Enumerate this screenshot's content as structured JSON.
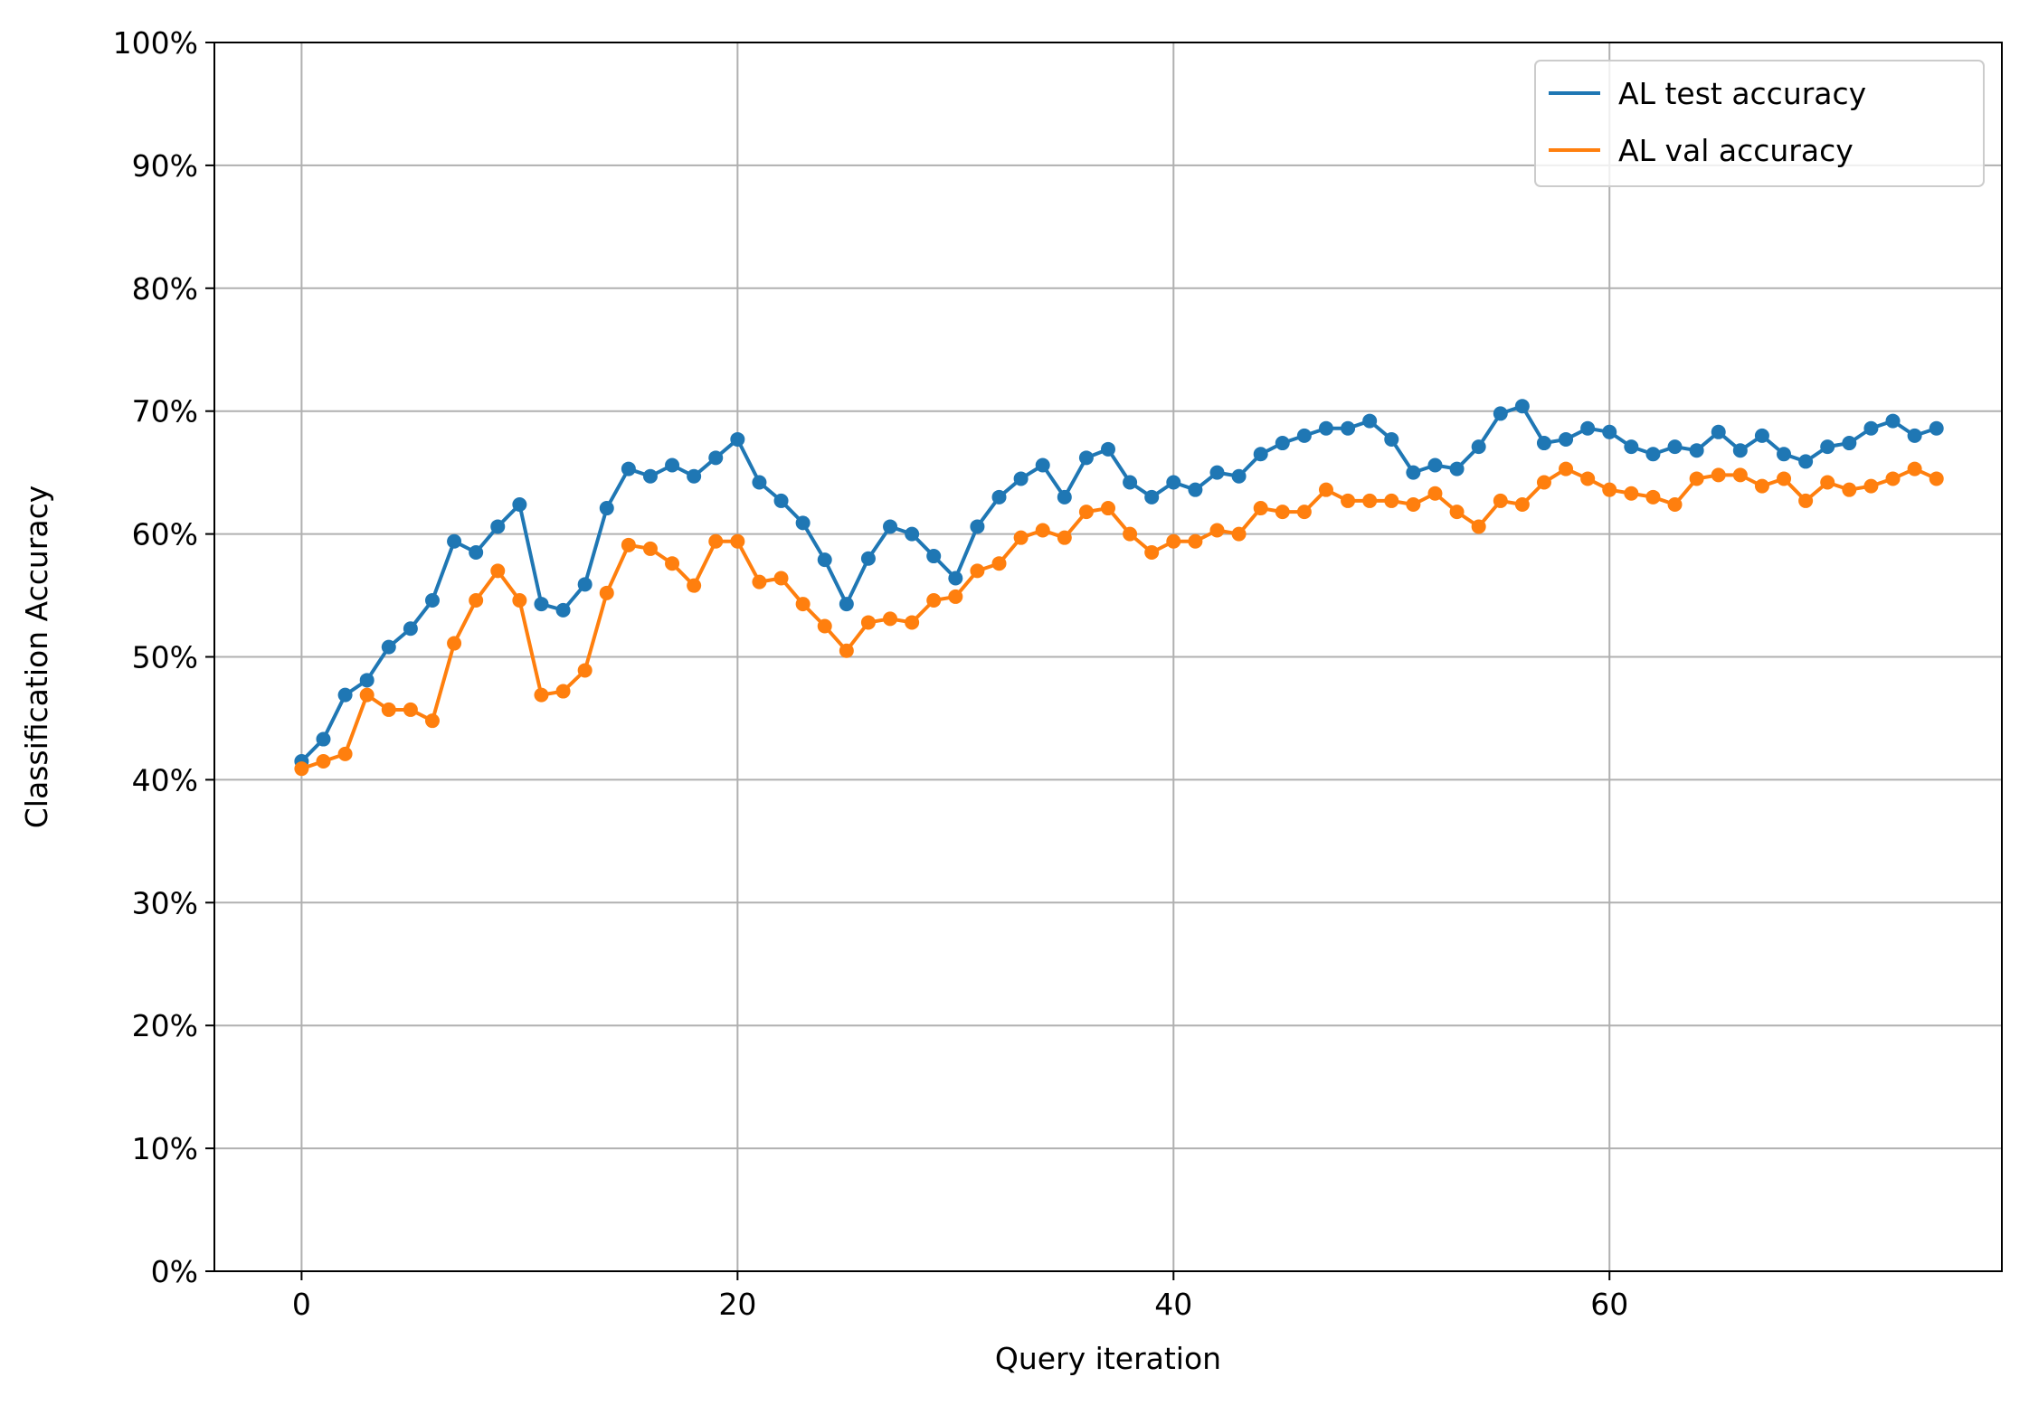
{
  "chart_data": {
    "type": "line",
    "title": "",
    "xlabel": "Query iteration",
    "ylabel": "Classification Accuracy",
    "xlim": [
      -4,
      78
    ],
    "ylim": [
      0,
      100
    ],
    "xticks": [
      0,
      20,
      40,
      60
    ],
    "yticks": [
      0,
      10,
      20,
      30,
      40,
      50,
      60,
      70,
      80,
      90,
      100
    ],
    "ytick_labels": [
      "0%",
      "10%",
      "20%",
      "30%",
      "40%",
      "50%",
      "60%",
      "70%",
      "80%",
      "90%",
      "100%"
    ],
    "grid": true,
    "legend_position": "top-right",
    "x": [
      0,
      1,
      2,
      3,
      4,
      5,
      6,
      7,
      8,
      9,
      10,
      11,
      12,
      13,
      14,
      15,
      16,
      17,
      18,
      19,
      20,
      21,
      22,
      23,
      24,
      25,
      26,
      27,
      28,
      29,
      30,
      31,
      32,
      33,
      34,
      35,
      36,
      37,
      38,
      39,
      40,
      41,
      42,
      43,
      44,
      45,
      46,
      47,
      48,
      49,
      50,
      51,
      52,
      53,
      54,
      55,
      56,
      57,
      58,
      59,
      60,
      61,
      62,
      63,
      64,
      65,
      66,
      67,
      68,
      69,
      70,
      71,
      72,
      73,
      74,
      75
    ],
    "series": [
      {
        "name": "AL test accuracy",
        "color": "#1f77b4",
        "values": [
          41.5,
          43.3,
          46.9,
          48.1,
          50.8,
          52.3,
          54.6,
          59.4,
          58.5,
          60.6,
          62.4,
          54.3,
          53.8,
          55.9,
          62.1,
          65.3,
          64.7,
          65.6,
          64.7,
          66.2,
          67.7,
          64.2,
          62.7,
          60.9,
          57.9,
          54.3,
          58.0,
          60.6,
          60.0,
          58.2,
          56.4,
          60.6,
          63.0,
          64.5,
          65.6,
          63.0,
          66.2,
          66.9,
          64.2,
          63.0,
          64.2,
          63.6,
          65.0,
          64.7,
          66.5,
          67.4,
          68.0,
          68.6,
          68.6,
          69.2,
          67.7,
          65.0,
          65.6,
          65.3,
          67.1,
          69.8,
          70.4,
          67.4,
          67.7,
          68.6,
          68.3,
          67.1,
          66.5,
          67.1,
          66.8,
          68.3,
          66.8,
          68.0,
          66.5,
          65.9,
          67.1,
          67.4,
          68.6,
          69.2,
          68.0,
          68.6
        ]
      },
      {
        "name": "AL val accuracy",
        "color": "#ff7f0e",
        "values": [
          40.9,
          41.5,
          42.1,
          46.9,
          45.7,
          45.7,
          44.8,
          51.1,
          54.6,
          57.0,
          54.6,
          46.9,
          47.2,
          48.9,
          55.2,
          59.1,
          58.8,
          57.6,
          55.8,
          59.4,
          59.4,
          56.1,
          56.4,
          54.3,
          52.5,
          50.5,
          52.8,
          53.1,
          52.8,
          54.6,
          54.9,
          57.0,
          57.6,
          59.7,
          60.3,
          59.7,
          61.8,
          62.1,
          60.0,
          58.5,
          59.4,
          59.4,
          60.3,
          60.0,
          62.1,
          61.8,
          61.8,
          63.6,
          62.7,
          62.7,
          62.7,
          62.4,
          63.3,
          61.8,
          60.6,
          62.7,
          62.4,
          64.2,
          65.3,
          64.5,
          63.6,
          63.3,
          63.0,
          62.4,
          64.5,
          64.8,
          64.8,
          63.9,
          64.5,
          62.7,
          64.2,
          63.6,
          63.9,
          64.5,
          65.3,
          64.5
        ]
      }
    ]
  }
}
